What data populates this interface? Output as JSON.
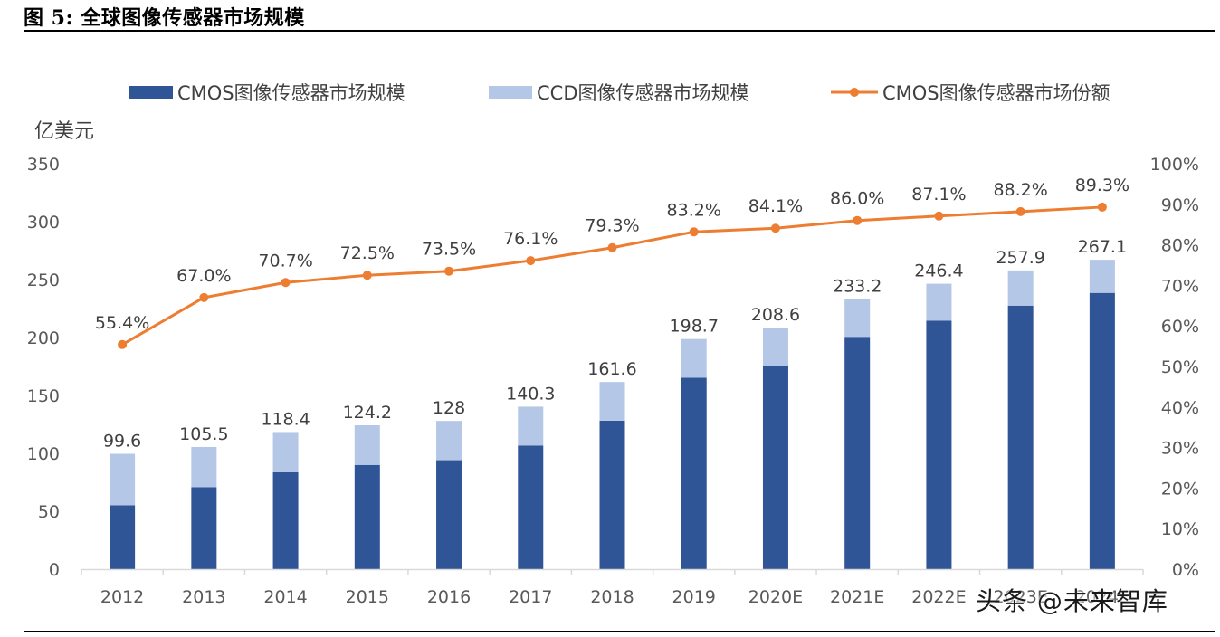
{
  "figure_title": "图 5: 全球图像传感器市场规模",
  "watermark": "头条 @未来智库",
  "chart_data": {
    "type": "bar",
    "stacked": true,
    "secondary_series_type": "line",
    "categories": [
      "2012",
      "2013",
      "2014",
      "2015",
      "2016",
      "2017",
      "2018",
      "2019",
      "2020E",
      "2021E",
      "2022E",
      "2023E",
      "2024E"
    ],
    "series": [
      {
        "name": "CMOS图像传感器市场规模",
        "type": "bar",
        "axis": "left",
        "color": "#2F5597",
        "values": [
          55.2,
          70.7,
          83.7,
          90.0,
          94.1,
          106.8,
          128.2,
          165.3,
          175.4,
          200.6,
          214.6,
          227.5,
          238.5
        ]
      },
      {
        "name": "CCD图像传感器市场规模",
        "type": "bar",
        "axis": "left",
        "color": "#B4C7E7",
        "values": [
          44.4,
          34.8,
          34.7,
          34.2,
          33.9,
          33.5,
          33.4,
          33.4,
          33.2,
          32.6,
          31.8,
          30.4,
          28.6
        ]
      },
      {
        "name": "CMOS图像传感器市场份额",
        "type": "line",
        "axis": "right",
        "color": "#ED7D31",
        "values": [
          55.4,
          67.0,
          70.7,
          72.5,
          73.5,
          76.1,
          79.3,
          83.2,
          84.1,
          86.0,
          87.1,
          88.2,
          89.3
        ],
        "labels": [
          "55.4%",
          "67.0%",
          "70.7%",
          "72.5%",
          "73.5%",
          "76.1%",
          "79.3%",
          "83.2%",
          "84.1%",
          "86.0%",
          "87.1%",
          "88.2%",
          "89.3%"
        ]
      }
    ],
    "total_labels": [
      "99.6",
      "105.5",
      "118.4",
      "124.2",
      "128",
      "140.3",
      "161.6",
      "198.7",
      "208.6",
      "233.2",
      "246.4",
      "257.9",
      "267.1"
    ],
    "ylabel": "亿美元",
    "ylim": [
      0,
      350
    ],
    "yticks": [
      "0",
      "50",
      "100",
      "150",
      "200",
      "250",
      "300",
      "350"
    ],
    "y2lim": [
      0,
      100
    ],
    "y2ticks": [
      "0%",
      "10%",
      "20%",
      "30%",
      "40%",
      "50%",
      "60%",
      "70%",
      "80%",
      "90%",
      "100%"
    ],
    "legend_position": "top",
    "grid": false
  }
}
